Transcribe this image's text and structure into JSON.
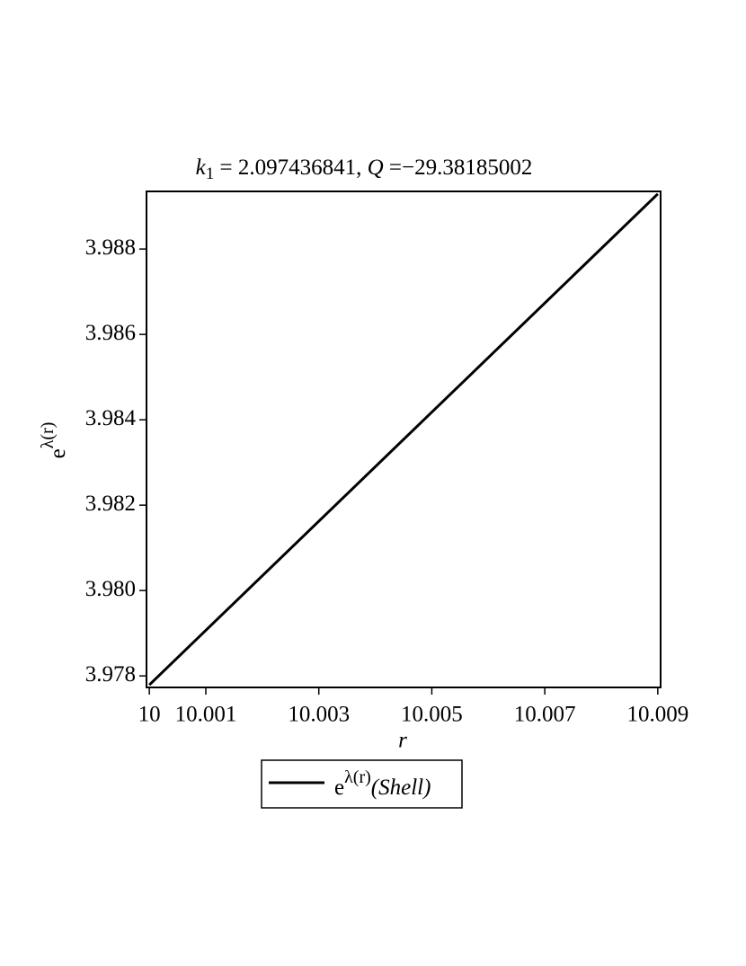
{
  "chart_data": {
    "type": "line",
    "title": [
      "k",
      "1",
      " = 2.097436841, ",
      "Q",
      " =−29.38185002"
    ],
    "xlabel": "r",
    "ylabel": [
      "e",
      "λ(r)"
    ],
    "x": [
      10,
      10.009
    ],
    "series": [
      {
        "name_parts": [
          "e",
          "λ(r)",
          "(Shell)"
        ],
        "color": "#000000",
        "values": [
          3.97779,
          3.98929
        ]
      }
    ],
    "xlim": [
      9.99995,
      10.00905
    ],
    "xticks": [
      10,
      10.001,
      10.003,
      10.005,
      10.007,
      10.009
    ],
    "ylim": [
      3.97773,
      3.98935
    ],
    "yticks": [
      {
        "value": 3.978,
        "label": "3.978"
      },
      {
        "value": 3.98,
        "label": "3.980"
      },
      3.982,
      3.984,
      3.986,
      3.988
    ],
    "legend": "bottom"
  }
}
